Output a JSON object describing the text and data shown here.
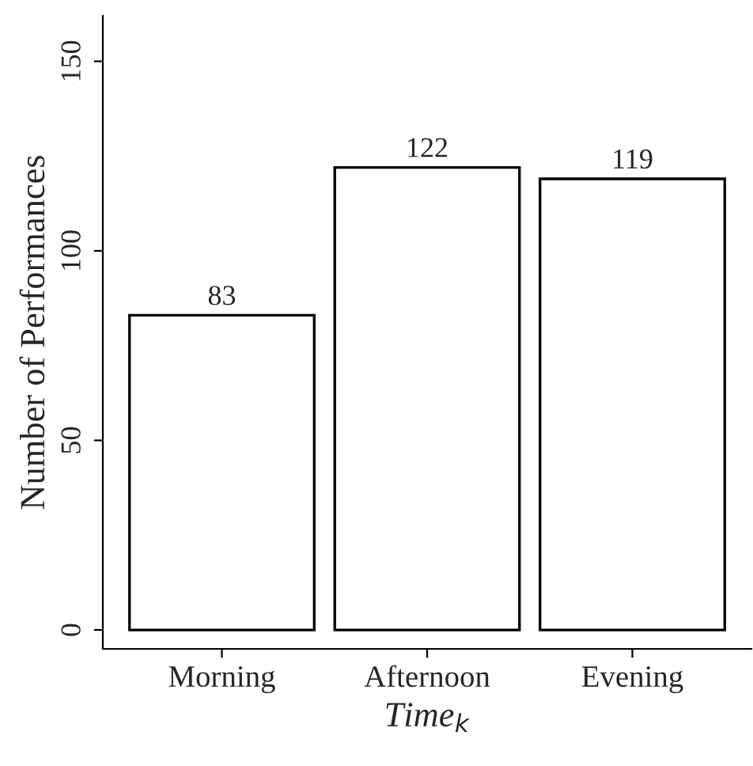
{
  "chart_data": {
    "type": "bar",
    "xlabel": "Time$_{k}$",
    "ylabel": "Number of Performances",
    "categories": [
      "Morning",
      "Afternoon",
      "Evening"
    ],
    "values": [
      83,
      122,
      119
    ],
    "color": "#ffffff",
    "data_labels": true,
    "ylim": [
      -5,
      162
    ],
    "yticks": [
      0,
      50,
      100,
      150
    ],
    "grid": false,
    "legend": false
  }
}
